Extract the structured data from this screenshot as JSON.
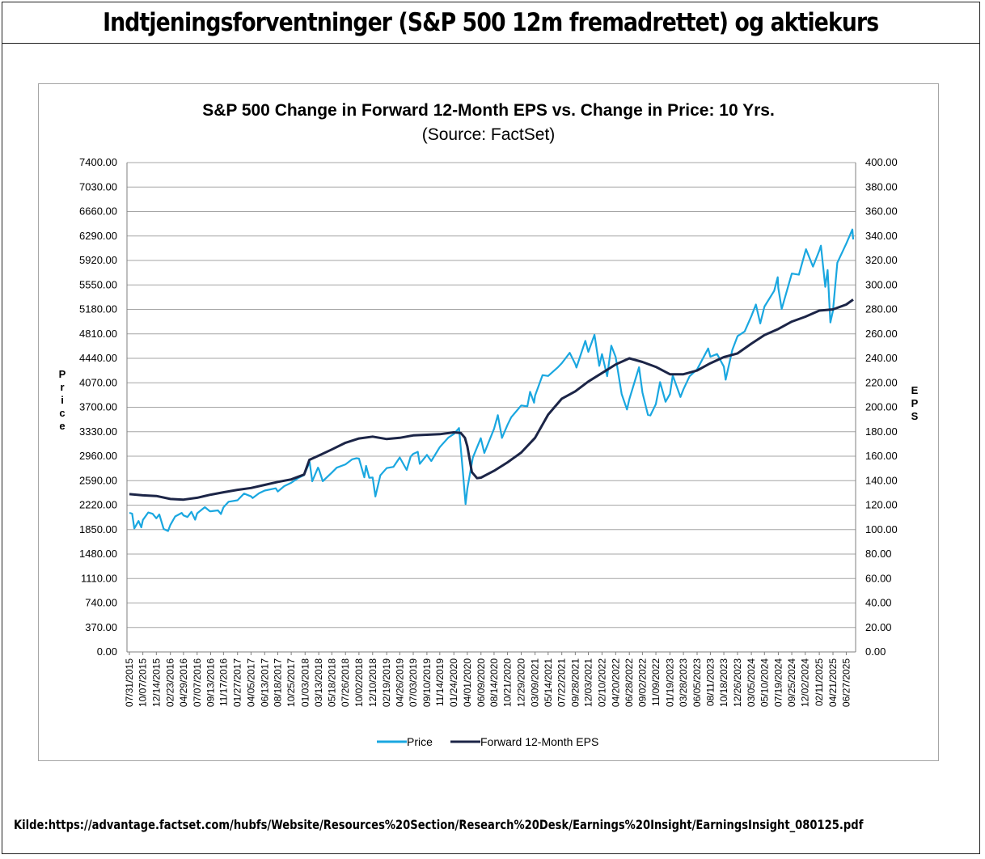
{
  "page": {
    "title": "Indtjeningsforventninger (S&P 500 12m fremadrettet) og aktiekurs",
    "source": "Kilde:https://advantage.factset.com/hubfs/Website/Resources%20Section/Research%20Desk/Earnings%20Insight/EarningsInsight_080125.pdf"
  },
  "chart_data": {
    "type": "line",
    "title": "S&P 500 Change in Forward 12-Month EPS vs. Change in Price: 10 Yrs.",
    "subtitle": "(Source: FactSet)",
    "ylabel_left": "Price",
    "ylabel_right": "EPS",
    "ylim_left": [
      0,
      7400
    ],
    "ylim_right": [
      0,
      400
    ],
    "y_ticks_left": [
      "0.00",
      "370.00",
      "740.00",
      "1110.00",
      "1480.00",
      "1850.00",
      "2220.00",
      "2590.00",
      "2960.00",
      "3330.00",
      "3700.00",
      "4070.00",
      "4440.00",
      "4810.00",
      "5180.00",
      "5550.00",
      "5920.00",
      "6290.00",
      "6660.00",
      "7030.00",
      "7400.00"
    ],
    "y_ticks_right": [
      "0.00",
      "20.00",
      "40.00",
      "60.00",
      "80.00",
      "100.00",
      "120.00",
      "140.00",
      "160.00",
      "180.00",
      "200.00",
      "220.00",
      "240.00",
      "260.00",
      "280.00",
      "300.00",
      "320.00",
      "340.00",
      "360.00",
      "380.00",
      "400.00"
    ],
    "x_ticks": [
      "07/31/2015",
      "10/07/2015",
      "12/14/2015",
      "02/23/2016",
      "04/29/2016",
      "07/07/2016",
      "09/13/2016",
      "11/17/2016",
      "01/27/2017",
      "04/05/2017",
      "06/13/2017",
      "08/18/2017",
      "10/25/2017",
      "01/03/2018",
      "03/13/2018",
      "05/18/2018",
      "07/26/2018",
      "10/02/2018",
      "12/10/2018",
      "02/19/2019",
      "04/26/2019",
      "07/03/2019",
      "09/10/2019",
      "11/14/2019",
      "01/24/2020",
      "04/01/2020",
      "06/09/2020",
      "08/14/2020",
      "10/21/2020",
      "12/29/2020",
      "03/09/2021",
      "05/14/2021",
      "07/22/2021",
      "09/28/2021",
      "12/03/2021",
      "02/10/2022",
      "04/20/2022",
      "06/28/2022",
      "09/02/2022",
      "11/09/2022",
      "01/19/2023",
      "03/28/2023",
      "06/05/2023",
      "08/11/2023",
      "10/18/2023",
      "12/26/2023",
      "03/05/2024",
      "05/10/2024",
      "07/19/2024",
      "09/25/2024",
      "12/02/2024",
      "02/11/2025",
      "04/21/2025",
      "06/27/2025"
    ],
    "legend": [
      "Price",
      "Forward 12-Month EPS"
    ],
    "legend_position": "bottom",
    "grid": true,
    "series": [
      {
        "name": "Price",
        "axis": "left",
        "color": "#1aa7e0",
        "points": [
          [
            "2015-07-31",
            2104
          ],
          [
            "2015-08-14",
            2092
          ],
          [
            "2015-08-25",
            1868
          ],
          [
            "2015-09-15",
            1980
          ],
          [
            "2015-09-29",
            1884
          ],
          [
            "2015-10-07",
            1996
          ],
          [
            "2015-11-03",
            2109
          ],
          [
            "2015-11-25",
            2089
          ],
          [
            "2015-12-14",
            2021
          ],
          [
            "2015-12-29",
            2078
          ],
          [
            "2016-01-20",
            1859
          ],
          [
            "2016-02-11",
            1829
          ],
          [
            "2016-02-23",
            1921
          ],
          [
            "2016-03-18",
            2049
          ],
          [
            "2016-04-20",
            2102
          ],
          [
            "2016-04-29",
            2065
          ],
          [
            "2016-05-19",
            2040
          ],
          [
            "2016-06-08",
            2119
          ],
          [
            "2016-06-27",
            2000
          ],
          [
            "2016-07-07",
            2097
          ],
          [
            "2016-08-15",
            2190
          ],
          [
            "2016-09-09",
            2128
          ],
          [
            "2016-09-13",
            2127
          ],
          [
            "2016-10-20",
            2141
          ],
          [
            "2016-11-04",
            2085
          ],
          [
            "2016-11-17",
            2187
          ],
          [
            "2016-12-13",
            2271
          ],
          [
            "2017-01-27",
            2294
          ],
          [
            "2017-03-01",
            2395
          ],
          [
            "2017-04-05",
            2352
          ],
          [
            "2017-04-13",
            2328
          ],
          [
            "2017-05-16",
            2400
          ],
          [
            "2017-06-13",
            2440
          ],
          [
            "2017-08-08",
            2474
          ],
          [
            "2017-08-18",
            2425
          ],
          [
            "2017-09-20",
            2508
          ],
          [
            "2017-10-25",
            2557
          ],
          [
            "2017-11-28",
            2627
          ],
          [
            "2017-12-29",
            2674
          ],
          [
            "2018-01-26",
            2872
          ],
          [
            "2018-02-08",
            2581
          ],
          [
            "2018-03-09",
            2786
          ],
          [
            "2018-03-13",
            2765
          ],
          [
            "2018-04-02",
            2582
          ],
          [
            "2018-05-18",
            2712
          ],
          [
            "2018-06-12",
            2786
          ],
          [
            "2018-07-26",
            2837
          ],
          [
            "2018-08-29",
            2914
          ],
          [
            "2018-09-20",
            2930
          ],
          [
            "2018-10-02",
            2923
          ],
          [
            "2018-10-29",
            2641
          ],
          [
            "2018-11-07",
            2813
          ],
          [
            "2018-11-23",
            2633
          ],
          [
            "2018-12-10",
            2637
          ],
          [
            "2018-12-24",
            2351
          ],
          [
            "2019-01-18",
            2670
          ],
          [
            "2019-02-19",
            2780
          ],
          [
            "2019-03-25",
            2798
          ],
          [
            "2019-04-26",
            2940
          ],
          [
            "2019-05-31",
            2752
          ],
          [
            "2019-06-20",
            2954
          ],
          [
            "2019-07-03",
            2996
          ],
          [
            "2019-07-26",
            3026
          ],
          [
            "2019-08-05",
            2844
          ],
          [
            "2019-09-10",
            2979
          ],
          [
            "2019-10-02",
            2887
          ],
          [
            "2019-11-14",
            3097
          ],
          [
            "2019-12-27",
            3240
          ],
          [
            "2020-01-24",
            3295
          ],
          [
            "2020-02-19",
            3386
          ],
          [
            "2020-03-09",
            2746
          ],
          [
            "2020-03-23",
            2237
          ],
          [
            "2020-04-01",
            2470
          ],
          [
            "2020-04-29",
            2939
          ],
          [
            "2020-06-08",
            3232
          ],
          [
            "2020-06-26",
            3009
          ],
          [
            "2020-08-14",
            3373
          ],
          [
            "2020-09-02",
            3580
          ],
          [
            "2020-09-23",
            3237
          ],
          [
            "2020-10-21",
            3435
          ],
          [
            "2020-11-09",
            3550
          ],
          [
            "2020-12-29",
            3727
          ],
          [
            "2021-01-29",
            3714
          ],
          [
            "2021-02-12",
            3934
          ],
          [
            "2021-03-04",
            3768
          ],
          [
            "2021-03-09",
            3875
          ],
          [
            "2021-04-16",
            4185
          ],
          [
            "2021-05-14",
            4173
          ],
          [
            "2021-06-30",
            4298
          ],
          [
            "2021-07-22",
            4367
          ],
          [
            "2021-08-31",
            4523
          ],
          [
            "2021-09-28",
            4352
          ],
          [
            "2021-10-04",
            4300
          ],
          [
            "2021-11-18",
            4704
          ],
          [
            "2021-12-03",
            4538
          ],
          [
            "2022-01-03",
            4796
          ],
          [
            "2022-01-27",
            4326
          ],
          [
            "2022-02-10",
            4504
          ],
          [
            "2022-03-08",
            4170
          ],
          [
            "2022-03-29",
            4631
          ],
          [
            "2022-04-20",
            4459
          ],
          [
            "2022-05-20",
            3901
          ],
          [
            "2022-06-16",
            3666
          ],
          [
            "2022-06-28",
            3821
          ],
          [
            "2022-08-16",
            4305
          ],
          [
            "2022-09-02",
            3924
          ],
          [
            "2022-09-30",
            3585
          ],
          [
            "2022-10-12",
            3577
          ],
          [
            "2022-11-09",
            3748
          ],
          [
            "2022-11-30",
            4080
          ],
          [
            "2022-12-28",
            3783
          ],
          [
            "2023-01-19",
            3899
          ],
          [
            "2023-02-02",
            4179
          ],
          [
            "2023-03-13",
            3855
          ],
          [
            "2023-03-28",
            3971
          ],
          [
            "2023-04-28",
            4169
          ],
          [
            "2023-06-05",
            4273
          ],
          [
            "2023-07-31",
            4589
          ],
          [
            "2023-08-11",
            4464
          ],
          [
            "2023-09-14",
            4505
          ],
          [
            "2023-10-18",
            4314
          ],
          [
            "2023-10-27",
            4117
          ],
          [
            "2023-11-30",
            4568
          ],
          [
            "2023-12-26",
            4775
          ],
          [
            "2024-01-31",
            4846
          ],
          [
            "2024-03-05",
            5079
          ],
          [
            "2024-03-28",
            5254
          ],
          [
            "2024-04-19",
            4967
          ],
          [
            "2024-05-10",
            5223
          ],
          [
            "2024-06-28",
            5460
          ],
          [
            "2024-07-16",
            5667
          ],
          [
            "2024-07-19",
            5505
          ],
          [
            "2024-08-05",
            5186
          ],
          [
            "2024-09-25",
            5722
          ],
          [
            "2024-10-31",
            5705
          ],
          [
            "2024-12-02",
            6047
          ],
          [
            "2024-12-06",
            6090
          ],
          [
            "2025-01-10",
            5827
          ],
          [
            "2025-02-11",
            6068
          ],
          [
            "2025-02-19",
            6144
          ],
          [
            "2025-03-13",
            5521
          ],
          [
            "2025-03-25",
            5776
          ],
          [
            "2025-04-08",
            4982
          ],
          [
            "2025-04-21",
            5158
          ],
          [
            "2025-05-13",
            5886
          ],
          [
            "2025-06-27",
            6173
          ],
          [
            "2025-07-28",
            6389
          ],
          [
            "2025-08-01",
            6238
          ]
        ]
      },
      {
        "name": "Forward 12-Month EPS",
        "axis": "right",
        "color": "#1c2547",
        "points": [
          [
            "2015-07-31",
            129
          ],
          [
            "2015-10-07",
            128
          ],
          [
            "2015-12-14",
            127.5
          ],
          [
            "2016-02-23",
            125
          ],
          [
            "2016-04-29",
            124.5
          ],
          [
            "2016-07-07",
            126
          ],
          [
            "2016-09-13",
            128.5
          ],
          [
            "2016-11-17",
            130.5
          ],
          [
            "2017-01-27",
            132.5
          ],
          [
            "2017-04-05",
            134
          ],
          [
            "2017-06-13",
            136.5
          ],
          [
            "2017-08-18",
            139
          ],
          [
            "2017-10-25",
            141
          ],
          [
            "2017-12-29",
            145
          ],
          [
            "2018-01-25",
            157
          ],
          [
            "2018-03-13",
            160.5
          ],
          [
            "2018-05-18",
            165.5
          ],
          [
            "2018-07-26",
            171
          ],
          [
            "2018-10-02",
            174.5
          ],
          [
            "2018-12-10",
            176
          ],
          [
            "2019-02-19",
            174
          ],
          [
            "2019-04-26",
            175
          ],
          [
            "2019-07-03",
            177
          ],
          [
            "2019-09-10",
            177.5
          ],
          [
            "2019-11-14",
            178
          ],
          [
            "2020-01-24",
            179.5
          ],
          [
            "2020-02-28",
            179
          ],
          [
            "2020-03-20",
            175
          ],
          [
            "2020-04-01",
            168
          ],
          [
            "2020-04-24",
            147
          ],
          [
            "2020-05-20",
            142
          ],
          [
            "2020-06-09",
            142.5
          ],
          [
            "2020-08-14",
            148
          ],
          [
            "2020-10-21",
            155
          ],
          [
            "2020-12-29",
            163
          ],
          [
            "2021-03-09",
            175
          ],
          [
            "2021-05-14",
            194
          ],
          [
            "2021-07-22",
            207
          ],
          [
            "2021-09-28",
            213
          ],
          [
            "2021-12-03",
            221
          ],
          [
            "2022-02-10",
            228
          ],
          [
            "2022-04-20",
            235
          ],
          [
            "2022-06-28",
            240
          ],
          [
            "2022-09-02",
            237
          ],
          [
            "2022-11-09",
            233
          ],
          [
            "2023-01-19",
            227
          ],
          [
            "2023-03-28",
            227
          ],
          [
            "2023-06-05",
            230
          ],
          [
            "2023-08-11",
            236
          ],
          [
            "2023-10-18",
            241
          ],
          [
            "2023-12-26",
            244
          ],
          [
            "2024-03-05",
            252
          ],
          [
            "2024-05-10",
            259
          ],
          [
            "2024-07-19",
            264
          ],
          [
            "2024-09-25",
            270
          ],
          [
            "2024-12-02",
            274
          ],
          [
            "2025-02-11",
            279
          ],
          [
            "2025-04-21",
            280
          ],
          [
            "2025-06-27",
            284
          ],
          [
            "2025-08-01",
            288
          ]
        ]
      }
    ]
  }
}
